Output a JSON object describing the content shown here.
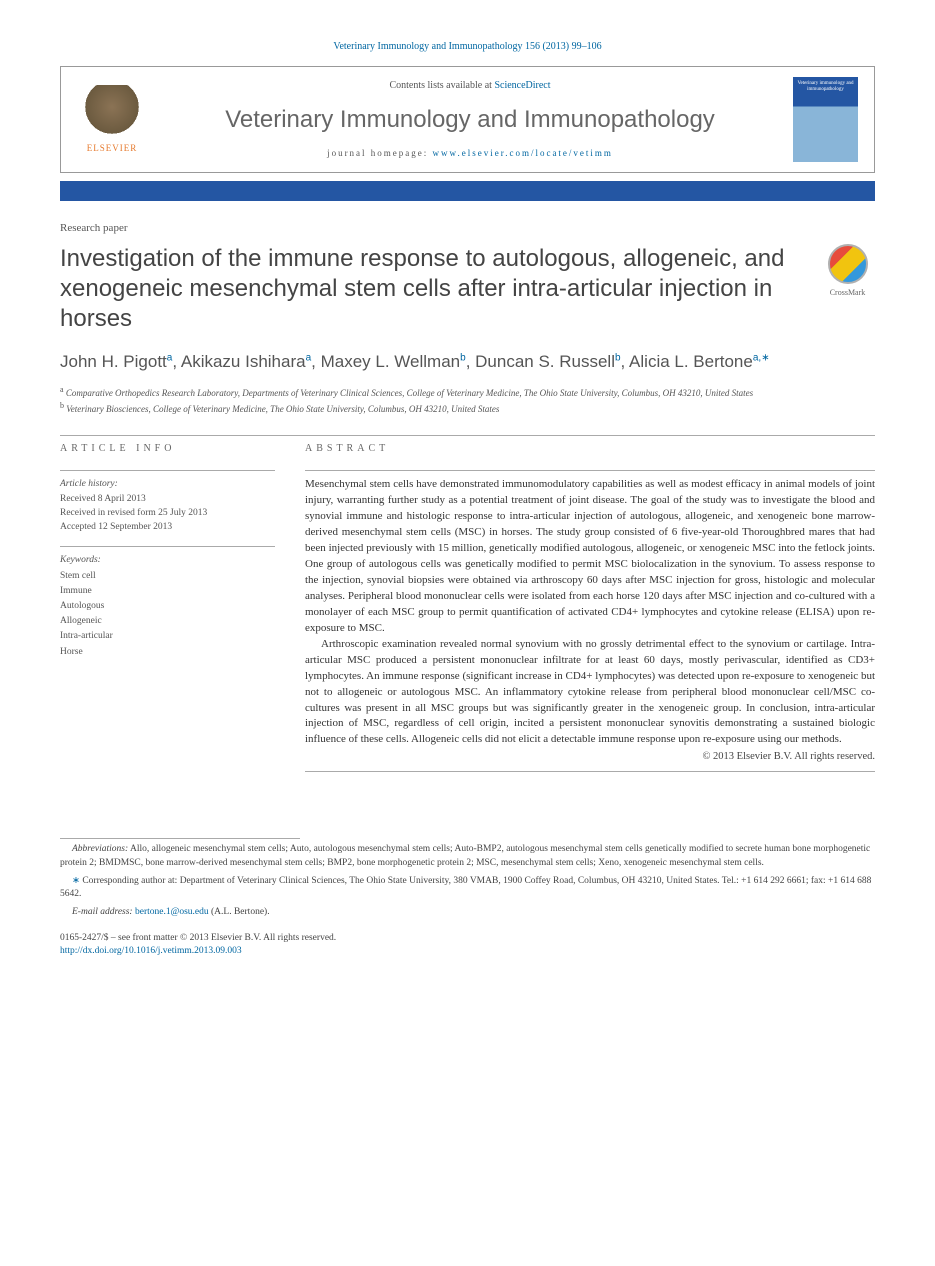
{
  "header": {
    "citation": "Veterinary Immunology and Immunopathology 156 (2013) 99–106",
    "contents_prefix": "Contents lists available at ",
    "contents_link": "ScienceDirect",
    "journal_name": "Veterinary Immunology and Immunopathology",
    "homepage_prefix": "journal homepage: ",
    "homepage_link": "www.elsevier.com/locate/vetimm",
    "publisher": "ELSEVIER",
    "cover_text": "Veterinary immunology and immunopathology"
  },
  "crossmark": {
    "label": "CrossMark"
  },
  "paper": {
    "type": "Research paper",
    "title": "Investigation of the immune response to autologous, allogeneic, and xenogeneic mesenchymal stem cells after intra-articular injection in horses",
    "authors_html": "John H. Pigott<sup>a</sup>, Akikazu Ishihara<sup>a</sup>, Maxey L. Wellman<sup>b</sup>, Duncan S. Russell<sup>b</sup>, Alicia L. Bertone<sup>a,</sup>",
    "corr_marker": "∗",
    "affil_a": "Comparative Orthopedics Research Laboratory, Departments of Veterinary Clinical Sciences, College of Veterinary Medicine, The Ohio State University, Columbus, OH 43210, United States",
    "affil_b": "Veterinary Biosciences, College of Veterinary Medicine, The Ohio State University, Columbus, OH 43210, United States"
  },
  "article_info": {
    "heading": "article info",
    "history_label": "Article history:",
    "received": "Received 8 April 2013",
    "revised": "Received in revised form 25 July 2013",
    "accepted": "Accepted 12 September 2013",
    "keywords_label": "Keywords:",
    "keywords": [
      "Stem cell",
      "Immune",
      "Autologous",
      "Allogeneic",
      "Intra-articular",
      "Horse"
    ]
  },
  "abstract": {
    "heading": "abstract",
    "p1": "Mesenchymal stem cells have demonstrated immunomodulatory capabilities as well as modest efficacy in animal models of joint injury, warranting further study as a potential treatment of joint disease. The goal of the study was to investigate the blood and synovial immune and histologic response to intra-articular injection of autologous, allogeneic, and xenogeneic bone marrow-derived mesenchymal stem cells (MSC) in horses. The study group consisted of 6 five-year-old Thoroughbred mares that had been injected previously with 15 million, genetically modified autologous, allogeneic, or xenogeneic MSC into the fetlock joints. One group of autologous cells was genetically modified to permit MSC biolocalization in the synovium. To assess response to the injection, synovial biopsies were obtained via arthroscopy 60 days after MSC injection for gross, histologic and molecular analyses. Peripheral blood mononuclear cells were isolated from each horse 120 days after MSC injection and co-cultured with a monolayer of each MSC group to permit quantification of activated CD4+ lymphocytes and cytokine release (ELISA) upon re-exposure to MSC.",
    "p2": "Arthroscopic examination revealed normal synovium with no grossly detrimental effect to the synovium or cartilage. Intra-articular MSC produced a persistent mononuclear infiltrate for at least 60 days, mostly perivascular, identified as CD3+ lymphocytes. An immune response (significant increase in CD4+ lymphocytes) was detected upon re-exposure to xenogeneic but not to allogeneic or autologous MSC. An inflammatory cytokine release from peripheral blood mononuclear cell/MSC co-cultures was present in all MSC groups but was significantly greater in the xenogeneic group. In conclusion, intra-articular injection of MSC, regardless of cell origin, incited a persistent mononuclear synovitis demonstrating a sustained biologic influence of these cells. Allogeneic cells did not elicit a detectable immune response upon re-exposure using our methods.",
    "copyright": "© 2013 Elsevier B.V. All rights reserved."
  },
  "footer": {
    "abbrev_label": "Abbreviations:",
    "abbrev_text": " Allo, allogeneic mesenchymal stem cells; Auto, autologous mesenchymal stem cells; Auto-BMP2, autologous mesenchymal stem cells genetically modified to secrete human bone morphogenetic protein 2; BMDMSC, bone marrow-derived mesenchymal stem cells; BMP2, bone morphogenetic protein 2; MSC, mesenchymal stem cells; Xeno, xenogeneic mesenchymal stem cells.",
    "corr_text": "Corresponding author at: Department of Veterinary Clinical Sciences, The Ohio State University, 380 VMAB, 1900 Coffey Road, Columbus, OH 43210, United States. Tel.: +1 614 292 6661; fax: +1 614 688 5642.",
    "email_label": "E-mail address:",
    "email": "bertone.1@osu.edu",
    "email_suffix": " (A.L. Bertone).",
    "issn_line": "0165-2427/$ – see front matter © 2013 Elsevier B.V. All rights reserved.",
    "doi": "http://dx.doi.org/10.1016/j.vetimm.2013.09.003"
  },
  "colors": {
    "link": "#0066a1",
    "bar": "#2456a3",
    "text": "#333333",
    "muted": "#555555"
  }
}
